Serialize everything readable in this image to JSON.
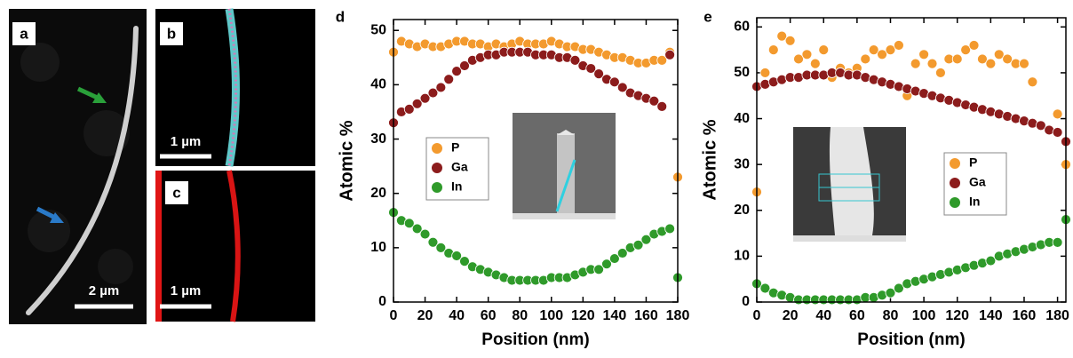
{
  "figure": {
    "panel_labels": [
      "a",
      "b",
      "c"
    ],
    "scale_bars": [
      "2 µm",
      "1 µm",
      "1 µm"
    ]
  },
  "chart_data": [
    {
      "type": "scatter",
      "panel_label": "d",
      "x_label": "Position (nm)",
      "y_label": "Atomic %",
      "x": [
        0,
        5,
        10,
        15,
        20,
        25,
        30,
        35,
        40,
        45,
        50,
        55,
        60,
        65,
        70,
        75,
        80,
        85,
        90,
        95,
        100,
        105,
        110,
        115,
        120,
        125,
        130,
        135,
        140,
        145,
        150,
        155,
        160,
        165,
        170,
        175,
        180
      ],
      "series": [
        {
          "name": "P",
          "color": "#f39a2e",
          "values": [
            46,
            48,
            47.5,
            47,
            47.5,
            47,
            47,
            47.5,
            48,
            48,
            47.5,
            47.5,
            47,
            47.5,
            47,
            47.5,
            48,
            47.5,
            47.5,
            47.5,
            48,
            47.5,
            47,
            47,
            46.5,
            46.5,
            46,
            45.5,
            45,
            45,
            44.5,
            44,
            44,
            44.5,
            44.5,
            46,
            23
          ]
        },
        {
          "name": "Ga",
          "color": "#8c1c1c",
          "values": [
            33,
            35,
            35.5,
            36.5,
            37.5,
            38.5,
            39.5,
            41,
            42.5,
            43.5,
            44.5,
            45,
            45.5,
            45.5,
            46,
            46,
            46,
            46,
            45.5,
            45.5,
            45.5,
            45,
            45,
            44.5,
            43.5,
            43,
            42,
            41,
            40.5,
            39.5,
            38.5,
            38,
            37.5,
            37,
            36,
            45.5,
            null
          ]
        },
        {
          "name": "In",
          "color": "#2f9a2a",
          "values": [
            16.5,
            15,
            14.5,
            13.5,
            12.5,
            11,
            10,
            9,
            8.5,
            7.5,
            6.5,
            6,
            5.5,
            5,
            4.5,
            4,
            4,
            4,
            4,
            4,
            4.5,
            4.5,
            4.5,
            5,
            5.5,
            6,
            6,
            7,
            8,
            9,
            10,
            10.5,
            11.5,
            12.5,
            13,
            13.5,
            4.5
          ]
        }
      ],
      "xlim": [
        0,
        180
      ],
      "ylim": [
        0,
        52
      ],
      "xticks": [
        0,
        20,
        40,
        60,
        80,
        100,
        120,
        140,
        160,
        180
      ],
      "yticks": [
        0,
        10,
        20,
        30,
        40,
        50
      ]
    },
    {
      "type": "scatter",
      "panel_label": "e",
      "x_label": "Position (nm)",
      "y_label": "Atomic %",
      "x": [
        0,
        5,
        10,
        15,
        20,
        25,
        30,
        35,
        40,
        45,
        50,
        55,
        60,
        65,
        70,
        75,
        80,
        85,
        90,
        95,
        100,
        105,
        110,
        115,
        120,
        125,
        130,
        135,
        140,
        145,
        150,
        155,
        160,
        165,
        170,
        175,
        180,
        185
      ],
      "series": [
        {
          "name": "P",
          "color": "#f39a2e",
          "values": [
            24,
            50,
            55,
            58,
            57,
            53,
            54,
            52,
            55,
            49,
            51,
            50,
            51,
            53,
            55,
            54,
            55,
            56,
            45,
            52,
            54,
            52,
            50,
            53,
            53,
            55,
            56,
            53,
            52,
            54,
            53,
            52,
            52,
            48,
            null,
            null,
            41,
            30
          ]
        },
        {
          "name": "Ga",
          "color": "#8c1c1c",
          "values": [
            47,
            47.5,
            48,
            48.5,
            49,
            49,
            49.5,
            49.5,
            49.5,
            50,
            50,
            49.5,
            49.5,
            49,
            48.5,
            48,
            47.5,
            47,
            46.5,
            46,
            45.5,
            45,
            44.5,
            44,
            43.5,
            43,
            42.5,
            42,
            41.5,
            41,
            40.5,
            40,
            39.5,
            39,
            38.5,
            37.5,
            37,
            35
          ]
        },
        {
          "name": "In",
          "color": "#2f9a2a",
          "values": [
            4,
            3,
            2,
            1.5,
            1,
            0.5,
            0.5,
            0.5,
            0.5,
            0.5,
            0.5,
            0.5,
            0.5,
            1,
            1,
            1.5,
            2,
            3,
            4,
            4.5,
            5,
            5.5,
            6,
            6.5,
            7,
            7.5,
            8,
            8.5,
            9,
            10,
            10.5,
            11,
            11.5,
            12,
            12.5,
            13,
            13,
            18
          ]
        }
      ],
      "xlim": [
        0,
        185
      ],
      "ylim": [
        0,
        62
      ],
      "xticks": [
        0,
        20,
        40,
        60,
        80,
        100,
        120,
        140,
        160,
        180
      ],
      "yticks": [
        0,
        10,
        20,
        30,
        40,
        50,
        60
      ]
    }
  ]
}
